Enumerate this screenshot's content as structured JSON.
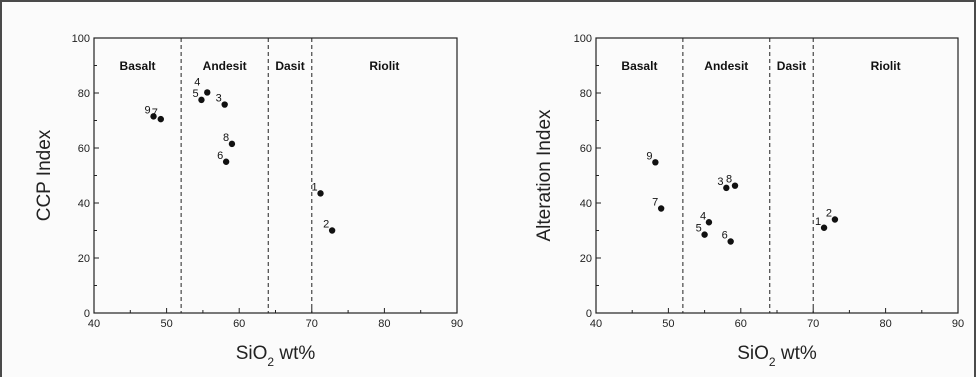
{
  "chart_data": [
    {
      "type": "scatter",
      "xlabel": "SiO2 wt%",
      "ylabel": "CCP Index",
      "xlim": [
        40,
        90
      ],
      "ylim": [
        0,
        100
      ],
      "xticks": [
        40,
        50,
        60,
        70,
        80,
        90
      ],
      "yticks": [
        0,
        20,
        40,
        60,
        80,
        100
      ],
      "boundaries": [
        52,
        64,
        70
      ],
      "regions": [
        {
          "label": "Basalt",
          "x": 46
        },
        {
          "label": "Andesit",
          "x": 58
        },
        {
          "label": "Dasit",
          "x": 67
        },
        {
          "label": "Riolit",
          "x": 80
        }
      ],
      "points": [
        {
          "label": "9",
          "x": 48.2,
          "y": 71.5
        },
        {
          "label": "7",
          "x": 49.2,
          "y": 70.5
        },
        {
          "label": "5",
          "x": 54.8,
          "y": 77.5
        },
        {
          "label": "4",
          "x": 55.6,
          "y": 80.2
        },
        {
          "label": "3",
          "x": 58.0,
          "y": 75.8
        },
        {
          "label": "8",
          "x": 59.0,
          "y": 61.5
        },
        {
          "label": "6",
          "x": 58.2,
          "y": 55.0
        },
        {
          "label": "1",
          "x": 71.2,
          "y": 43.5
        },
        {
          "label": "2",
          "x": 72.8,
          "y": 30.0
        }
      ]
    },
    {
      "type": "scatter",
      "xlabel": "SiO2 wt%",
      "ylabel": "Alteration Index",
      "xlim": [
        40,
        90
      ],
      "ylim": [
        0,
        100
      ],
      "xticks": [
        40,
        50,
        60,
        70,
        80,
        90
      ],
      "yticks": [
        0,
        20,
        40,
        60,
        80,
        100
      ],
      "boundaries": [
        52,
        64,
        70
      ],
      "regions": [
        {
          "label": "Basalt",
          "x": 46
        },
        {
          "label": "Andesit",
          "x": 58
        },
        {
          "label": "Dasit",
          "x": 67
        },
        {
          "label": "Riolit",
          "x": 80
        }
      ],
      "points": [
        {
          "label": "9",
          "x": 48.2,
          "y": 54.8
        },
        {
          "label": "7",
          "x": 49.0,
          "y": 38.0
        },
        {
          "label": "3",
          "x": 58.0,
          "y": 45.5
        },
        {
          "label": "8",
          "x": 59.2,
          "y": 46.3
        },
        {
          "label": "4",
          "x": 55.6,
          "y": 33.0
        },
        {
          "label": "5",
          "x": 55.0,
          "y": 28.5
        },
        {
          "label": "6",
          "x": 58.6,
          "y": 26.0
        },
        {
          "label": "1",
          "x": 71.5,
          "y": 31.0
        },
        {
          "label": "2",
          "x": 73.0,
          "y": 34.0
        }
      ]
    }
  ]
}
